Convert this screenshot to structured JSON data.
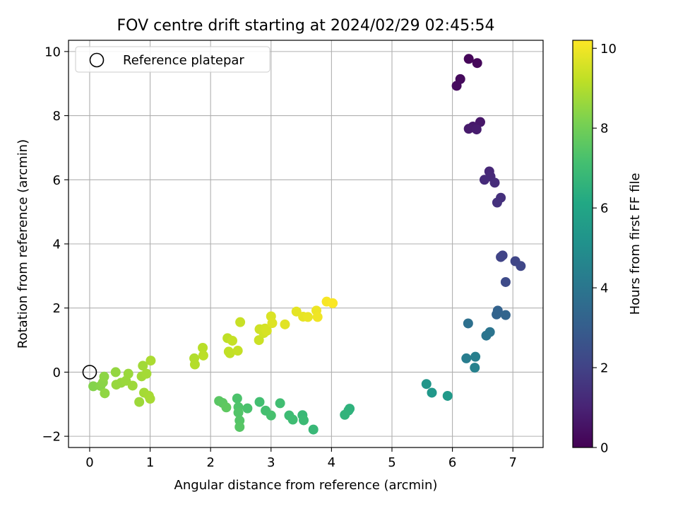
{
  "chart_data": {
    "type": "scatter",
    "title": "FOV centre drift starting at 2024/02/29 02:45:54",
    "xlabel": "Angular distance from reference (arcmin)",
    "ylabel": "Rotation from reference (arcmin)",
    "xlim": [
      -0.35,
      7.5
    ],
    "ylim": [
      -2.35,
      10.35
    ],
    "xticks": [
      "0",
      "1",
      "2",
      "3",
      "4",
      "5",
      "6",
      "7"
    ],
    "yticks": [
      "−2",
      "0",
      "2",
      "4",
      "6",
      "8",
      "10"
    ],
    "grid": true,
    "legend": {
      "position": "top-left",
      "entries": [
        {
          "label": "Reference platepar",
          "marker": "open-circle"
        }
      ]
    },
    "reference_point": {
      "x": 0,
      "y": 0
    },
    "colorbar": {
      "label": "Hours from first FF file",
      "min": 0,
      "max": 10.2,
      "ticks": [
        "0",
        "2",
        "4",
        "6",
        "8",
        "10"
      ],
      "colormap": "viridis"
    },
    "points": [
      {
        "x": 6.27,
        "y": 9.77,
        "hours": 0.15
      },
      {
        "x": 6.41,
        "y": 9.64,
        "hours": 0.2
      },
      {
        "x": 6.13,
        "y": 9.14,
        "hours": 0.25
      },
      {
        "x": 6.07,
        "y": 8.93,
        "hours": 0.3
      },
      {
        "x": 6.46,
        "y": 7.8,
        "hours": 0.65
      },
      {
        "x": 6.34,
        "y": 7.66,
        "hours": 0.7
      },
      {
        "x": 6.27,
        "y": 7.59,
        "hours": 0.75
      },
      {
        "x": 6.4,
        "y": 7.57,
        "hours": 0.8
      },
      {
        "x": 6.61,
        "y": 6.26,
        "hours": 1.15
      },
      {
        "x": 6.63,
        "y": 6.1,
        "hours": 1.2
      },
      {
        "x": 6.53,
        "y": 6.0,
        "hours": 1.25
      },
      {
        "x": 6.7,
        "y": 5.91,
        "hours": 1.3
      },
      {
        "x": 6.8,
        "y": 5.44,
        "hours": 1.4
      },
      {
        "x": 6.74,
        "y": 5.29,
        "hours": 1.45
      },
      {
        "x": 6.83,
        "y": 3.64,
        "hours": 2.0
      },
      {
        "x": 6.8,
        "y": 3.59,
        "hours": 2.05
      },
      {
        "x": 7.04,
        "y": 3.46,
        "hours": 2.1
      },
      {
        "x": 7.13,
        "y": 3.31,
        "hours": 2.15
      },
      {
        "x": 6.88,
        "y": 2.81,
        "hours": 2.3
      },
      {
        "x": 6.75,
        "y": 1.92,
        "hours": 3.2
      },
      {
        "x": 6.73,
        "y": 1.8,
        "hours": 3.25
      },
      {
        "x": 6.88,
        "y": 1.78,
        "hours": 3.3
      },
      {
        "x": 6.26,
        "y": 1.52,
        "hours": 3.75
      },
      {
        "x": 6.62,
        "y": 1.25,
        "hours": 3.9
      },
      {
        "x": 6.56,
        "y": 1.14,
        "hours": 3.95
      },
      {
        "x": 6.23,
        "y": 0.43,
        "hours": 4.3
      },
      {
        "x": 6.38,
        "y": 0.48,
        "hours": 4.35
      },
      {
        "x": 6.37,
        "y": 0.14,
        "hours": 4.45
      },
      {
        "x": 5.57,
        "y": -0.37,
        "hours": 5.3
      },
      {
        "x": 5.66,
        "y": -0.64,
        "hours": 5.4
      },
      {
        "x": 5.92,
        "y": -0.74,
        "hours": 5.45
      },
      {
        "x": 4.3,
        "y": -1.14,
        "hours": 6.5
      },
      {
        "x": 4.28,
        "y": -1.2,
        "hours": 6.55
      },
      {
        "x": 4.22,
        "y": -1.33,
        "hours": 6.6
      },
      {
        "x": 3.7,
        "y": -1.79,
        "hours": 6.8
      },
      {
        "x": 3.52,
        "y": -1.34,
        "hours": 6.85
      },
      {
        "x": 3.54,
        "y": -1.5,
        "hours": 6.9
      },
      {
        "x": 3.3,
        "y": -1.35,
        "hours": 6.95
      },
      {
        "x": 3.36,
        "y": -1.48,
        "hours": 7.0
      },
      {
        "x": 3.15,
        "y": -0.97,
        "hours": 7.05
      },
      {
        "x": 2.81,
        "y": -0.93,
        "hours": 7.1
      },
      {
        "x": 2.91,
        "y": -1.2,
        "hours": 7.15
      },
      {
        "x": 3.0,
        "y": -1.35,
        "hours": 7.2
      },
      {
        "x": 2.61,
        "y": -1.13,
        "hours": 7.25
      },
      {
        "x": 2.44,
        "y": -0.82,
        "hours": 7.3
      },
      {
        "x": 2.46,
        "y": -1.09,
        "hours": 7.35
      },
      {
        "x": 2.46,
        "y": -1.26,
        "hours": 7.4
      },
      {
        "x": 2.48,
        "y": -1.51,
        "hours": 7.45
      },
      {
        "x": 2.48,
        "y": -1.71,
        "hours": 7.5
      },
      {
        "x": 2.14,
        "y": -0.9,
        "hours": 7.55
      },
      {
        "x": 2.2,
        "y": -0.96,
        "hours": 7.6
      },
      {
        "x": 2.26,
        "y": -1.1,
        "hours": 7.65
      },
      {
        "x": 0.06,
        "y": -0.44,
        "hours": 8.3
      },
      {
        "x": 0.18,
        "y": -0.43,
        "hours": 8.35
      },
      {
        "x": 0.22,
        "y": -0.32,
        "hours": 8.4
      },
      {
        "x": 0.24,
        "y": -0.14,
        "hours": 8.45
      },
      {
        "x": 0.25,
        "y": -0.66,
        "hours": 8.5
      },
      {
        "x": 0.43,
        "y": 0.0,
        "hours": 8.55
      },
      {
        "x": 0.44,
        "y": -0.39,
        "hours": 8.6
      },
      {
        "x": 0.52,
        "y": -0.33,
        "hours": 8.6
      },
      {
        "x": 0.6,
        "y": -0.27,
        "hours": 8.65
      },
      {
        "x": 0.64,
        "y": -0.05,
        "hours": 8.65
      },
      {
        "x": 0.71,
        "y": -0.42,
        "hours": 8.7
      },
      {
        "x": 0.82,
        "y": -0.93,
        "hours": 8.7
      },
      {
        "x": 0.86,
        "y": -0.13,
        "hours": 8.75
      },
      {
        "x": 0.88,
        "y": 0.2,
        "hours": 8.75
      },
      {
        "x": 0.9,
        "y": -0.64,
        "hours": 8.8
      },
      {
        "x": 0.94,
        "y": -0.05,
        "hours": 8.8
      },
      {
        "x": 0.98,
        "y": -0.74,
        "hours": 8.85
      },
      {
        "x": 1.0,
        "y": -0.83,
        "hours": 8.85
      },
      {
        "x": 1.01,
        "y": 0.36,
        "hours": 8.9
      },
      {
        "x": 1.73,
        "y": 0.43,
        "hours": 9.0
      },
      {
        "x": 1.74,
        "y": 0.24,
        "hours": 9.05
      },
      {
        "x": 1.87,
        "y": 0.76,
        "hours": 9.1
      },
      {
        "x": 1.88,
        "y": 0.52,
        "hours": 9.15
      },
      {
        "x": 2.28,
        "y": 1.06,
        "hours": 9.2
      },
      {
        "x": 2.3,
        "y": 0.64,
        "hours": 9.25
      },
      {
        "x": 2.32,
        "y": 0.59,
        "hours": 9.25
      },
      {
        "x": 2.36,
        "y": 0.98,
        "hours": 9.3
      },
      {
        "x": 2.45,
        "y": 0.67,
        "hours": 9.3
      },
      {
        "x": 2.49,
        "y": 1.56,
        "hours": 9.35
      },
      {
        "x": 2.8,
        "y": 1.0,
        "hours": 9.4
      },
      {
        "x": 2.81,
        "y": 1.34,
        "hours": 9.45
      },
      {
        "x": 2.88,
        "y": 1.22,
        "hours": 9.5
      },
      {
        "x": 2.9,
        "y": 1.36,
        "hours": 9.55
      },
      {
        "x": 2.93,
        "y": 1.29,
        "hours": 9.6
      },
      {
        "x": 3.0,
        "y": 1.74,
        "hours": 9.65
      },
      {
        "x": 3.02,
        "y": 1.53,
        "hours": 9.7
      },
      {
        "x": 3.23,
        "y": 1.49,
        "hours": 9.75
      },
      {
        "x": 3.42,
        "y": 1.89,
        "hours": 9.8
      },
      {
        "x": 3.53,
        "y": 1.73,
        "hours": 9.85
      },
      {
        "x": 3.61,
        "y": 1.72,
        "hours": 9.9
      },
      {
        "x": 3.75,
        "y": 1.92,
        "hours": 9.95
      },
      {
        "x": 3.77,
        "y": 1.72,
        "hours": 10.0
      },
      {
        "x": 3.92,
        "y": 2.2,
        "hours": 10.1
      },
      {
        "x": 4.02,
        "y": 2.15,
        "hours": 10.15
      }
    ]
  }
}
